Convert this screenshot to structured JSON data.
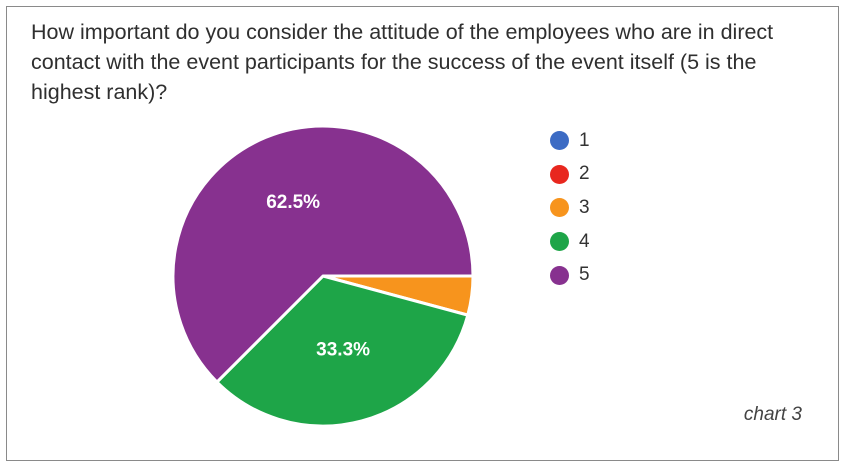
{
  "chart_data": {
    "type": "pie",
    "title": "How important do you consider the attitude of the employees who are in direct contact with the event participants for the success of the event itself (5 is the highest rank)?",
    "categories": [
      "1",
      "2",
      "3",
      "4",
      "5"
    ],
    "values": [
      0,
      0,
      4.2,
      33.3,
      62.5
    ],
    "data_labels": [
      "",
      "",
      "",
      "33.3%",
      "62.5%"
    ],
    "colors": [
      "#3c6bc4",
      "#e8271e",
      "#f7941d",
      "#1ea548",
      "#87318f"
    ],
    "legend_position": "right",
    "start_angle_deg": 0,
    "direction": "clockwise"
  },
  "caption": "chart 3"
}
